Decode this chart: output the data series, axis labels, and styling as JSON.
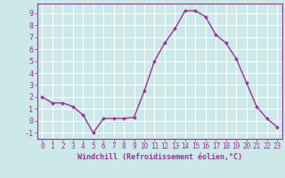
{
  "x": [
    0,
    1,
    2,
    3,
    4,
    5,
    6,
    7,
    8,
    9,
    10,
    11,
    12,
    13,
    14,
    15,
    16,
    17,
    18,
    19,
    20,
    21,
    22,
    23
  ],
  "y": [
    2.0,
    1.5,
    1.5,
    1.2,
    0.5,
    -1.0,
    0.2,
    0.2,
    0.2,
    0.3,
    2.5,
    5.0,
    6.5,
    7.7,
    9.2,
    9.2,
    8.7,
    7.2,
    6.5,
    5.2,
    3.2,
    1.2,
    0.2,
    -0.5
  ],
  "line_color": "#993399",
  "marker": "D",
  "marker_size": 2.0,
  "bg_color": "#cce8e8",
  "grid_color": "#ffffff",
  "xlabel": "Windchill (Refroidissement éolien,°C)",
  "xlim": [
    -0.5,
    23.5
  ],
  "ylim": [
    -1.5,
    9.8
  ],
  "yticks": [
    -1,
    0,
    1,
    2,
    3,
    4,
    5,
    6,
    7,
    8,
    9
  ],
  "xticks": [
    0,
    1,
    2,
    3,
    4,
    5,
    6,
    7,
    8,
    9,
    10,
    11,
    12,
    13,
    14,
    15,
    16,
    17,
    18,
    19,
    20,
    21,
    22,
    23
  ],
  "tick_color": "#993399",
  "label_color": "#993399",
  "spine_color": "#993399",
  "linewidth": 1.0,
  "xlabel_fontsize": 6.0,
  "tick_fontsize": 5.5,
  "ytick_fontsize": 6.0
}
